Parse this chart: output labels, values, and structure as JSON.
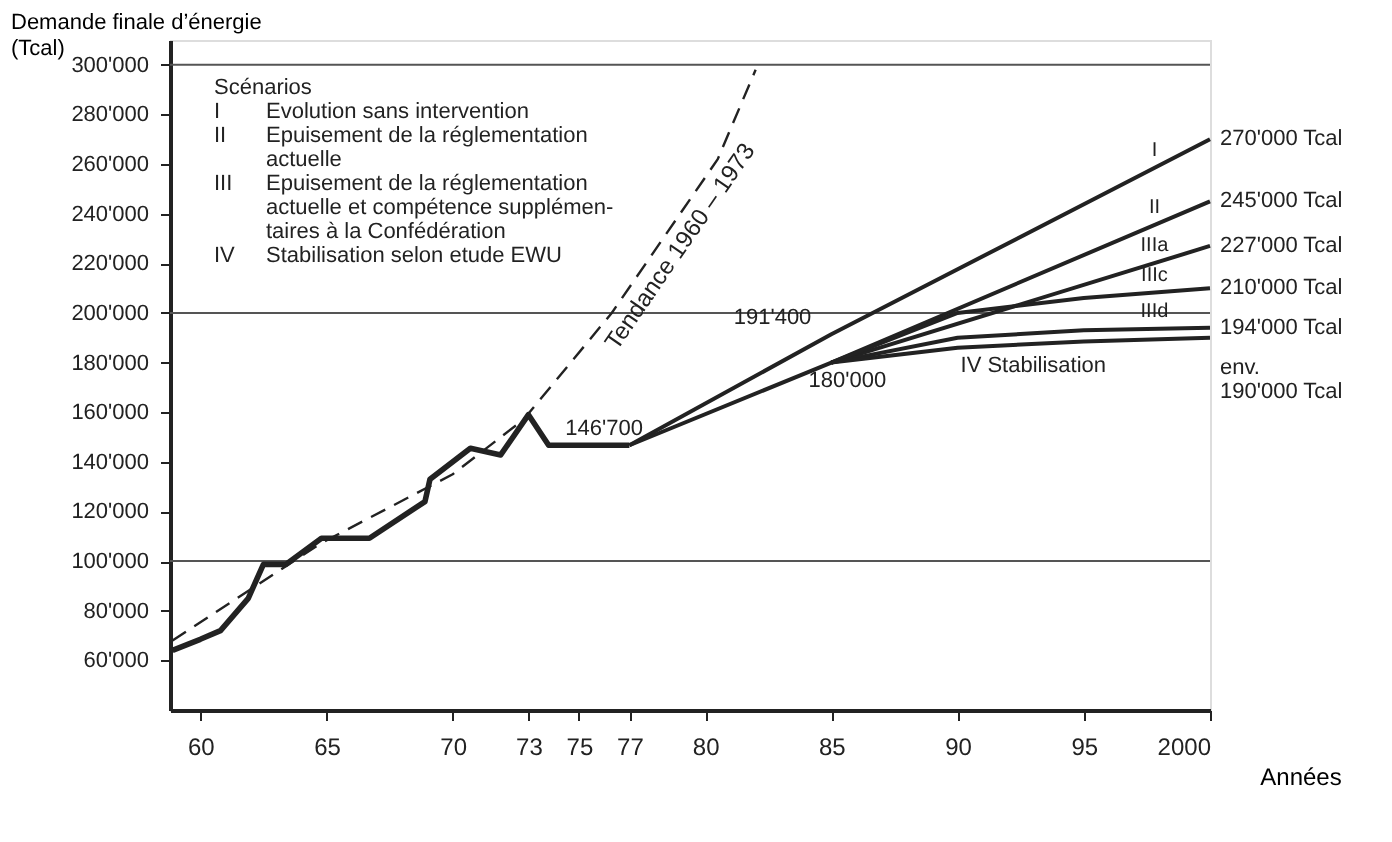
{
  "chart_data": {
    "type": "line",
    "ylabel": "Demande finale d’énergie\n(Tcal)",
    "xlabel": "Années",
    "xlim": [
      1958.8,
      2000
    ],
    "ylim": [
      40000,
      310000
    ],
    "xticks": [
      {
        "value": 1960,
        "label": "60"
      },
      {
        "value": 1965,
        "label": "65"
      },
      {
        "value": 1970,
        "label": "70"
      },
      {
        "value": 1973,
        "label": "73"
      },
      {
        "value": 1975,
        "label": "75"
      },
      {
        "value": 1977,
        "label": "77"
      },
      {
        "value": 1980,
        "label": "80"
      },
      {
        "value": 1985,
        "label": "85"
      },
      {
        "value": 1990,
        "label": "90"
      },
      {
        "value": 1995,
        "label": "95"
      },
      {
        "value": 2000,
        "label": "2000"
      }
    ],
    "yticks": [
      {
        "value": 60000,
        "label": "60'000"
      },
      {
        "value": 80000,
        "label": "80'000"
      },
      {
        "value": 100000,
        "label": "100'000"
      },
      {
        "value": 120000,
        "label": "120'000"
      },
      {
        "value": 140000,
        "label": "140'000"
      },
      {
        "value": 160000,
        "label": "160'000"
      },
      {
        "value": 180000,
        "label": "180'000"
      },
      {
        "value": 200000,
        "label": "200'000"
      },
      {
        "value": 220000,
        "label": "220'000"
      },
      {
        "value": 240000,
        "label": "240'000"
      },
      {
        "value": 260000,
        "label": "260'000"
      },
      {
        "value": 280000,
        "label": "280'000"
      },
      {
        "value": 300000,
        "label": "300'000"
      }
    ],
    "grid": false,
    "ref_lines": [
      {
        "axis": "y",
        "value": 100000,
        "color": "#555555"
      },
      {
        "axis": "y",
        "value": 200000,
        "color": "#555555"
      },
      {
        "axis": "y",
        "value": 300000,
        "color": "#555555"
      }
    ],
    "series": [
      {
        "color": "#222222",
        "line_style": "solid",
        "x": [
          1958.9,
          1960.0,
          1960.8,
          1961.9,
          1962.5,
          1963.4,
          1964.8,
          1966.7,
          1968.9,
          1969.1,
          1970.7,
          1971.9,
          1973.0,
          1973.8,
          1977.0
        ],
        "values": [
          64000,
          68500,
          72000,
          85000,
          98700,
          98700,
          109200,
          109200,
          124000,
          133000,
          145500,
          142800,
          159000,
          146700,
          146700
        ]
      },
      {
        "name": "Tendance 1960 – 1973",
        "color": "#222222",
        "line_style": "dashed",
        "x": [
          1958.9,
          1964.8,
          1970.0,
          1972.8,
          1976.3,
          1980.5,
          1982.0
        ],
        "values": [
          68000,
          107300,
          135000,
          157000,
          200000,
          262000,
          298000
        ]
      },
      {
        "name": "I",
        "color": "#222222",
        "line_style": "solid",
        "x": [
          1977,
          1985,
          2000
        ],
        "values": [
          146700,
          191400,
          270000
        ]
      },
      {
        "name": "II",
        "color": "#222222",
        "line_style": "solid",
        "x": [
          1977,
          1985,
          2000
        ],
        "values": [
          146700,
          180000,
          245000
        ]
      },
      {
        "name": "IIIa",
        "color": "#222222",
        "line_style": "solid",
        "x": [
          1985,
          2000
        ],
        "values": [
          180000,
          227000
        ]
      },
      {
        "name": "IIIc",
        "color": "#222222",
        "line_style": "solid",
        "x": [
          1985,
          1990,
          1995,
          2000
        ],
        "values": [
          180000,
          200000,
          206000,
          210000
        ]
      },
      {
        "name": "IIId",
        "color": "#222222",
        "line_style": "solid",
        "x": [
          1985,
          1990,
          1995,
          2000
        ],
        "values": [
          180000,
          190000,
          193000,
          194000
        ]
      },
      {
        "name": "IV Stabilisation",
        "color": "#222222",
        "line_style": "solid",
        "x": [
          1985,
          1990,
          1995,
          2000
        ],
        "values": [
          180000,
          186000,
          188500,
          190000
        ]
      }
    ],
    "annotations": [
      "Scénarios",
      "I\tEvolution sans intervention",
      "II\tEpuisement de la réglementation\nactuelle",
      "III\tEpuisement de la réglementation\nactuelle et compétence supplémen-\ntaires à la Confédération",
      "IV\tStabilisation selon etude EWU",
      {
        "text": "146'700",
        "x": 1976,
        "y": 146700
      },
      {
        "text": "191'400",
        "x": 1985,
        "y": 191400
      },
      {
        "text": "180'000",
        "x": 1985,
        "y": 180000
      },
      {
        "text": "270'000 Tcal",
        "x": 2000,
        "y": 270000
      },
      {
        "text": "245'000 Tcal",
        "x": 2000,
        "y": 245000
      },
      {
        "text": "227'000 Tcal",
        "x": 2000,
        "y": 227000
      },
      {
        "text": "210'000 Tcal",
        "x": 2000,
        "y": 210000
      },
      {
        "text": "194'000 Tcal",
        "x": 2000,
        "y": 194000
      },
      {
        "text": "env.\n190'000 Tcal",
        "x": 2000,
        "y": 190000
      }
    ]
  }
}
